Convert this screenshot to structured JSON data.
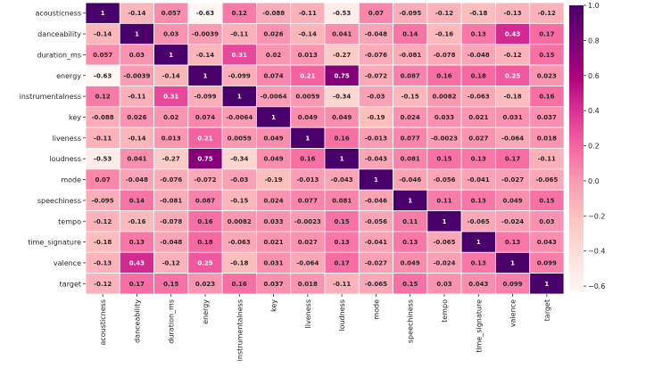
{
  "chart_data": {
    "type": "heatmap",
    "title": "",
    "xlabel": "",
    "ylabel": "",
    "labels": [
      "acousticness",
      "danceability",
      "duration_ms",
      "energy",
      "instrumentalness",
      "key",
      "liveness",
      "loudness",
      "mode",
      "speechiness",
      "tempo",
      "time_signature",
      "valence",
      "target"
    ],
    "value_labels": [
      [
        "1",
        "-0.14",
        "0.057",
        "-0.63",
        "0.12",
        "-0.088",
        "-0.11",
        "-0.53",
        "0.07",
        "-0.095",
        "-0.12",
        "-0.18",
        "-0.13",
        "-0.12"
      ],
      [
        "-0.14",
        "1",
        "0.03",
        "-0.0039",
        "-0.11",
        "0.026",
        "-0.14",
        "0.041",
        "-0.048",
        "0.14",
        "-0.16",
        "0.13",
        "0.43",
        "0.17"
      ],
      [
        "0.057",
        "0.03",
        "1",
        "-0.14",
        "0.31",
        "0.02",
        "0.013",
        "-0.27",
        "-0.076",
        "-0.081",
        "-0.078",
        "-0.048",
        "-0.12",
        "0.15"
      ],
      [
        "-0.63",
        "-0.0039",
        "-0.14",
        "1",
        "-0.099",
        "0.074",
        "0.21",
        "0.75",
        "-0.072",
        "0.087",
        "0.16",
        "0.18",
        "0.25",
        "0.023"
      ],
      [
        "0.12",
        "-0.11",
        "0.31",
        "-0.099",
        "1",
        "-0.0064",
        "0.0059",
        "-0.34",
        "-0.03",
        "-0.15",
        "0.0082",
        "-0.063",
        "-0.18",
        "0.16"
      ],
      [
        "-0.088",
        "0.026",
        "0.02",
        "0.074",
        "-0.0064",
        "1",
        "0.049",
        "0.049",
        "-0.19",
        "0.024",
        "0.033",
        "0.021",
        "0.031",
        "0.037"
      ],
      [
        "-0.11",
        "-0.14",
        "0.013",
        "0.21",
        "0.0059",
        "0.049",
        "1",
        "0.16",
        "-0.013",
        "0.077",
        "-0.0023",
        "0.027",
        "-0.064",
        "0.018"
      ],
      [
        "-0.53",
        "0.041",
        "-0.27",
        "0.75",
        "-0.34",
        "0.049",
        "0.16",
        "1",
        "-0.043",
        "0.081",
        "0.15",
        "0.13",
        "0.17",
        "-0.11"
      ],
      [
        "0.07",
        "-0.048",
        "-0.076",
        "-0.072",
        "-0.03",
        "-0.19",
        "-0.013",
        "-0.043",
        "1",
        "-0.046",
        "-0.056",
        "-0.041",
        "-0.027",
        "-0.065"
      ],
      [
        "-0.095",
        "0.14",
        "-0.081",
        "0.087",
        "-0.15",
        "0.024",
        "0.077",
        "0.081",
        "-0.046",
        "1",
        "0.11",
        "0.13",
        "0.049",
        "0.15"
      ],
      [
        "-0.12",
        "-0.16",
        "-0.078",
        "0.16",
        "0.0082",
        "0.033",
        "-0.0023",
        "0.15",
        "-0.056",
        "0.11",
        "1",
        "-0.065",
        "-0.024",
        "0.03"
      ],
      [
        "-0.18",
        "0.13",
        "-0.048",
        "0.18",
        "-0.063",
        "0.021",
        "0.027",
        "0.13",
        "-0.041",
        "0.13",
        "-0.065",
        "1",
        "0.13",
        "0.043"
      ],
      [
        "-0.13",
        "0.43",
        "-0.12",
        "0.25",
        "-0.18",
        "0.031",
        "-0.064",
        "0.17",
        "-0.027",
        "0.049",
        "-0.024",
        "0.13",
        "1",
        "0.099"
      ],
      [
        "-0.12",
        "0.17",
        "0.15",
        "0.023",
        "0.16",
        "0.037",
        "0.018",
        "-0.11",
        "-0.065",
        "0.15",
        "0.03",
        "0.043",
        "0.099",
        "1"
      ]
    ],
    "colormap": "RdPu",
    "colormap_stops": [
      "#fff7f3",
      "#fde0dd",
      "#fcc5c0",
      "#fa9fb5",
      "#f768a1",
      "#dd3497",
      "#ae017e",
      "#7a0177",
      "#49006a"
    ],
    "vmin": -0.63,
    "vmax": 1.0,
    "colorbar_ticks": [
      "1.0",
      "0.8",
      "0.6",
      "0.4",
      "0.2",
      "0.0",
      "−0.2",
      "−0.4",
      "−0.6"
    ],
    "grid": true
  }
}
